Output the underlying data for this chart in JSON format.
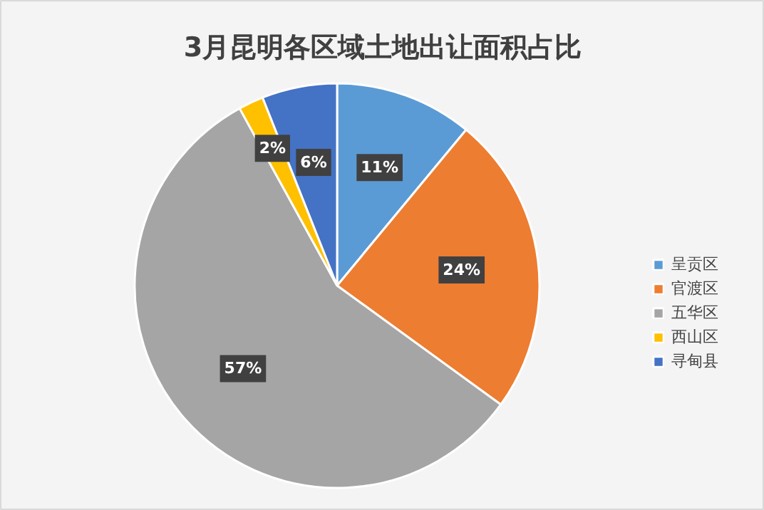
{
  "chart_data": {
    "type": "pie",
    "title": "3月昆明各区域土地出让面积占比",
    "categories": [
      "呈贡区",
      "官渡区",
      "五华区",
      "西山区",
      "寻甸县"
    ],
    "values": [
      11,
      24,
      57,
      2,
      6
    ],
    "colors": [
      "#5b9bd5",
      "#ed7d31",
      "#a5a5a5",
      "#ffc000",
      "#4472c4"
    ],
    "value_labels": [
      "11%",
      "24%",
      "57%",
      "2%",
      "6%"
    ],
    "legend": "right"
  }
}
